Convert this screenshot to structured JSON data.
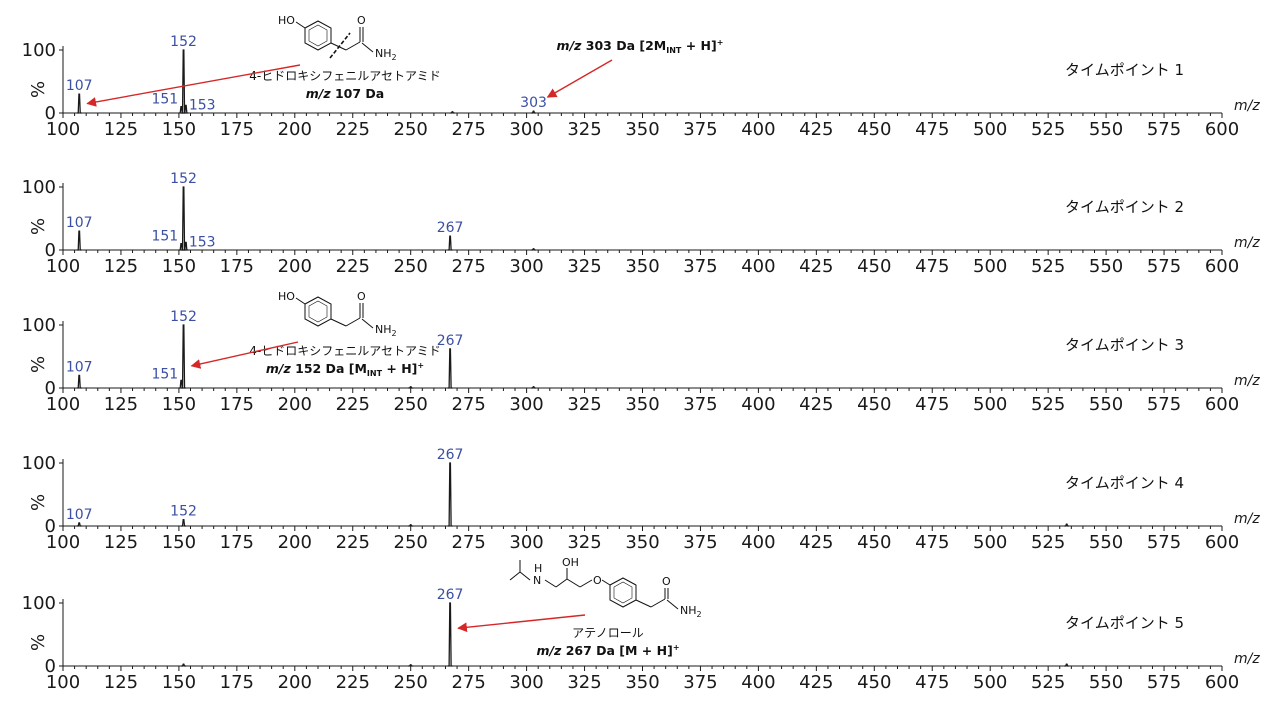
{
  "colors": {
    "axis": "#1a1a1a",
    "trace": "#1a1a1a",
    "peak_label": "#3b4fa3",
    "arrow": "#d62728"
  },
  "chart_data": [
    {
      "type": "line",
      "timepoint": "タイムポイント 1",
      "xlim": [
        100,
        600
      ],
      "ylim": [
        0,
        100
      ],
      "ylabel": "%",
      "xlabel": "m/z",
      "y_ticks": [
        "100",
        "0"
      ],
      "x_ticks": [
        "100",
        "125",
        "150",
        "175",
        "200",
        "225",
        "250",
        "275",
        "300",
        "325",
        "350",
        "375",
        "400",
        "425",
        "450",
        "475",
        "500",
        "525",
        "550",
        "575",
        "600"
      ],
      "peaks": [
        {
          "mz": 107,
          "intensity": 30,
          "label": "107"
        },
        {
          "mz": 151,
          "intensity": 10,
          "label": "151"
        },
        {
          "mz": 152,
          "intensity": 100,
          "label": "152"
        },
        {
          "mz": 153,
          "intensity": 12,
          "label": "153"
        },
        {
          "mz": 268,
          "intensity": 2,
          "label": ""
        },
        {
          "mz": 303,
          "intensity": 3,
          "label": "303"
        }
      ],
      "annotations": [
        {
          "structure": "4-hydroxyphenyl acetamide (fragmented)",
          "name": "4-ヒドロキシフェニルアセトアミド",
          "mass": "m/z 107 Da",
          "target_mz": 107
        },
        {
          "mass": "m/z 303 Da [2M",
          "sub": "INT",
          "suffix": " + H]",
          "sup": "+",
          "target_mz": 303
        }
      ]
    },
    {
      "type": "line",
      "timepoint": "タイムポイント 2",
      "xlim": [
        100,
        600
      ],
      "ylim": [
        0,
        100
      ],
      "ylabel": "%",
      "xlabel": "m/z",
      "y_ticks": [
        "100",
        "0"
      ],
      "x_ticks": [
        "100",
        "125",
        "150",
        "175",
        "200",
        "225",
        "250",
        "275",
        "300",
        "325",
        "350",
        "375",
        "400",
        "425",
        "450",
        "475",
        "500",
        "525",
        "550",
        "575",
        "600"
      ],
      "peaks": [
        {
          "mz": 107,
          "intensity": 30,
          "label": "107"
        },
        {
          "mz": 151,
          "intensity": 10,
          "label": "151"
        },
        {
          "mz": 152,
          "intensity": 100,
          "label": "152"
        },
        {
          "mz": 153,
          "intensity": 12,
          "label": "153"
        },
        {
          "mz": 267,
          "intensity": 22,
          "label": "267"
        },
        {
          "mz": 303,
          "intensity": 2,
          "label": ""
        }
      ],
      "annotations": []
    },
    {
      "type": "line",
      "timepoint": "タイムポイント 3",
      "xlim": [
        100,
        600
      ],
      "ylim": [
        0,
        100
      ],
      "ylabel": "%",
      "xlabel": "m/z",
      "y_ticks": [
        "100",
        "0"
      ],
      "x_ticks": [
        "100",
        "125",
        "150",
        "175",
        "200",
        "225",
        "250",
        "275",
        "300",
        "325",
        "350",
        "375",
        "400",
        "425",
        "450",
        "475",
        "500",
        "525",
        "550",
        "575",
        "600"
      ],
      "peaks": [
        {
          "mz": 107,
          "intensity": 20,
          "label": "107"
        },
        {
          "mz": 151,
          "intensity": 12,
          "label": "151"
        },
        {
          "mz": 152,
          "intensity": 100,
          "label": "152"
        },
        {
          "mz": 250,
          "intensity": 2,
          "label": ""
        },
        {
          "mz": 267,
          "intensity": 62,
          "label": "267"
        },
        {
          "mz": 303,
          "intensity": 2,
          "label": ""
        }
      ],
      "annotations": [
        {
          "structure": "4-hydroxyphenyl acetamide",
          "name": "4-ヒドロキシフェニルアセトアミド",
          "mass": "m/z 152 Da [M",
          "sub": "INT",
          "suffix": " + H]",
          "sup": "+",
          "target_mz": 152
        }
      ]
    },
    {
      "type": "line",
      "timepoint": "タイムポイント 4",
      "xlim": [
        100,
        600
      ],
      "ylim": [
        0,
        100
      ],
      "ylabel": "%",
      "xlabel": "m/z",
      "y_ticks": [
        "100",
        "0"
      ],
      "x_ticks": [
        "100",
        "125",
        "150",
        "175",
        "200",
        "225",
        "250",
        "275",
        "300",
        "325",
        "350",
        "375",
        "400",
        "425",
        "450",
        "475",
        "500",
        "525",
        "550",
        "575",
        "600"
      ],
      "peaks": [
        {
          "mz": 107,
          "intensity": 5,
          "label": "107"
        },
        {
          "mz": 152,
          "intensity": 10,
          "label": "152"
        },
        {
          "mz": 250,
          "intensity": 2,
          "label": ""
        },
        {
          "mz": 267,
          "intensity": 100,
          "label": "267"
        },
        {
          "mz": 533,
          "intensity": 3,
          "label": ""
        }
      ],
      "annotations": []
    },
    {
      "type": "line",
      "timepoint": "タイムポイント 5",
      "xlim": [
        100,
        600
      ],
      "ylim": [
        0,
        100
      ],
      "ylabel": "%",
      "xlabel": "m/z",
      "y_ticks": [
        "100",
        "0"
      ],
      "x_ticks": [
        "100",
        "125",
        "150",
        "175",
        "200",
        "225",
        "250",
        "275",
        "300",
        "325",
        "350",
        "375",
        "400",
        "425",
        "450",
        "475",
        "500",
        "525",
        "550",
        "575",
        "600"
      ],
      "peaks": [
        {
          "mz": 152,
          "intensity": 3,
          "label": ""
        },
        {
          "mz": 250,
          "intensity": 2,
          "label": ""
        },
        {
          "mz": 267,
          "intensity": 100,
          "label": "267"
        },
        {
          "mz": 533,
          "intensity": 3,
          "label": ""
        }
      ],
      "annotations": [
        {
          "structure": "atenolol",
          "name": "アテノロール",
          "mass": "m/z 267 Da [M + H]",
          "sup": "+",
          "target_mz": 267
        }
      ]
    }
  ],
  "chem_labels": {
    "ho": "HO",
    "oh": "OH",
    "nh2": "NH",
    "nh2_sub": "2",
    "n": "N",
    "h": "H",
    "o": "O"
  }
}
